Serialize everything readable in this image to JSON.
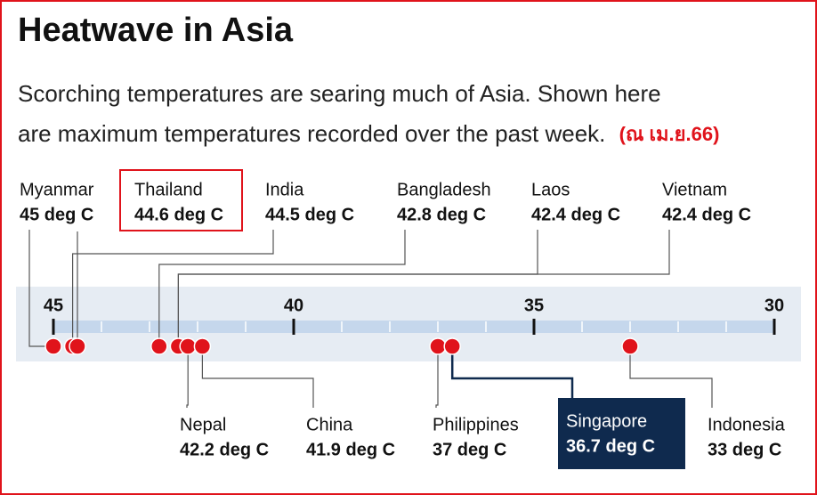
{
  "chart_data": {
    "type": "dot",
    "title": "Heatwave in Asia",
    "subtitle": [
      "Scorching temperatures are searing much of Asia. Shown here",
      "are maximum temperatures recorded over the past week."
    ],
    "date_note": "(ณ เม.ย.66)",
    "categories": [
      "Myanmar",
      "Thailand",
      "India",
      "Bangladesh",
      "Laos",
      "Vietnam",
      "Nepal",
      "China",
      "Philippines",
      "Singapore",
      "Indonesia"
    ],
    "values": [
      45,
      44.6,
      44.5,
      42.8,
      42.4,
      42.4,
      42.2,
      41.9,
      37,
      36.7,
      33
    ],
    "value_labels": [
      "45 deg C",
      "44.6 deg C",
      "44.5 deg C",
      "42.8 deg C",
      "42.4 deg C",
      "42.4 deg C",
      "42.2 deg C",
      "41.9 deg C",
      "37 deg C",
      "36.7 deg C",
      "33 deg C"
    ],
    "color": "#e0131b",
    "xlim": [
      45,
      30
    ],
    "xticks": [
      45,
      40,
      35,
      30
    ],
    "minor_xticks": [
      44,
      43,
      42,
      41,
      39,
      38,
      37,
      36,
      34,
      33,
      32,
      31
    ]
  }
}
